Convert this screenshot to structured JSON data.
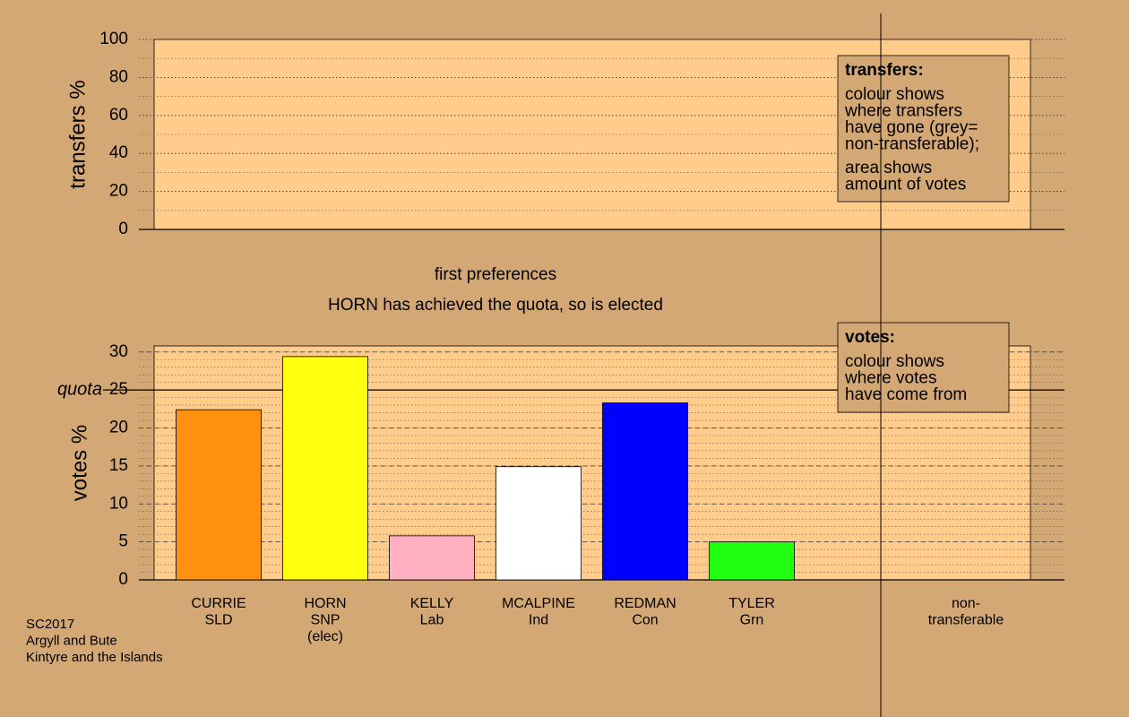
{
  "chart_data": [
    {
      "type": "bar",
      "ylabel": "transfers %",
      "ylim": [
        0,
        100
      ],
      "yticks": [
        0,
        20,
        40,
        60,
        80,
        100
      ],
      "yminor": 10,
      "grid": true,
      "legend": {
        "title": "transfers:",
        "lines": [
          "colour shows",
          "where transfers",
          "have gone (grey=",
          "non-transferable);"
        ],
        "lines2": [
          "area shows",
          "amount of votes"
        ]
      }
    },
    {
      "type": "bar",
      "title": "first preferences",
      "subtitle": "HORN has achieved the quota, so is elected",
      "ylabel": "votes %",
      "ylim": [
        0,
        30.8
      ],
      "yticks": [
        0,
        5,
        10,
        15,
        20,
        25,
        30
      ],
      "yminor": 1,
      "grid": true,
      "quota": {
        "value": 25,
        "label": "quota"
      },
      "categories": [
        [
          "CURRIE",
          "SLD"
        ],
        [
          "HORN",
          "SNP",
          "(elec)"
        ],
        [
          "KELLY",
          "Lab"
        ],
        [
          "MCALPINE",
          "Ind"
        ],
        [
          "REDMAN",
          "Con"
        ],
        [
          "TYLER",
          "Grn"
        ],
        [
          "non-",
          "transferable"
        ]
      ],
      "values": [
        22.4,
        29.4,
        5.8,
        14.9,
        23.3,
        5.0,
        null
      ],
      "colors": [
        "#ff9010",
        "#ffff10",
        "#ffb0c0",
        "#ffffff",
        "#0000ff",
        "#20ff10",
        null
      ],
      "legend": {
        "title": "votes:",
        "lines": [
          "colour shows",
          "where votes",
          "have come from"
        ]
      }
    }
  ],
  "footer": [
    "SC2017",
    "Argyll and Bute",
    "Kintyre and the Islands"
  ]
}
